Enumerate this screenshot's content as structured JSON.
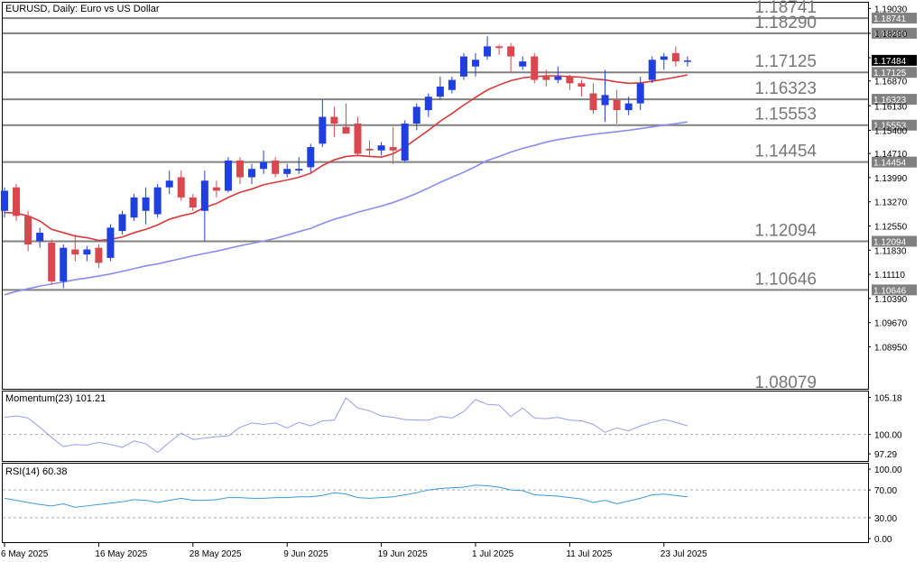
{
  "chart_title": "EURUSD, Daily:  Euro vs US Dollar",
  "momentum_label": "Momentum(23) 101.21",
  "rsi_label": "RSI(14) 60.38",
  "colors": {
    "bull": "#1f3fe0",
    "bear": "#d9474f",
    "ma_fast": "#d83a3a",
    "ma_slow": "#8a8df0",
    "level_line": "#808080",
    "momentum": "#9a9cf2",
    "rsi": "#3a9bd8",
    "current_price_tag": "#000000"
  },
  "price_axis_ticks": [
    "1.19030",
    "1.18290",
    "1.17560",
    "1.16870",
    "1.16130",
    "1.15400",
    "1.14710",
    "1.13990",
    "1.13270",
    "1.12550",
    "1.11830",
    "1.11110",
    "1.10390",
    "1.09670",
    "1.08950"
  ],
  "levels": [
    {
      "value": 1.18741,
      "big": "1.18741",
      "tag": "1.18741"
    },
    {
      "value": 1.1829,
      "big": "1.18290",
      "tag": "1.18290"
    },
    {
      "value": 1.17125,
      "big": "1.17125",
      "tag": "1.17125"
    },
    {
      "value": 1.16323,
      "big": "1.16323",
      "tag": "1.16323"
    },
    {
      "value": 1.15553,
      "big": "1.15553",
      "tag": "1.15553"
    },
    {
      "value": 1.14454,
      "big": "1.14454",
      "tag": "1.14454"
    },
    {
      "value": 1.12094,
      "big": "1.12094",
      "tag": "1.12094"
    },
    {
      "value": 1.10646,
      "big": "1.10646",
      "tag": "1.10646"
    }
  ],
  "bottom_level_text": "1.08079",
  "current_price": {
    "value": 1.17484,
    "label": "1.17484"
  },
  "momentum_axis_ticks": [
    {
      "v": 105.18,
      "t": "105.18"
    },
    {
      "v": 100.0,
      "t": "100.00"
    },
    {
      "v": 97.29,
      "t": "97.29"
    }
  ],
  "rsi_axis_ticks": [
    {
      "v": 100,
      "t": "100.00"
    },
    {
      "v": 70,
      "t": "70.00"
    },
    {
      "v": 30,
      "t": "30.00"
    },
    {
      "v": 0,
      "t": "0.00"
    }
  ],
  "date_labels": [
    {
      "index": 0,
      "text": "6 May 2025"
    },
    {
      "index": 8,
      "text": "16 May 2025"
    },
    {
      "index": 16,
      "text": "28 May 2025"
    },
    {
      "index": 24,
      "text": "9 Jun 2025"
    },
    {
      "index": 32,
      "text": "19 Jun 2025"
    },
    {
      "index": 40,
      "text": "1 Jul 2025"
    },
    {
      "index": 48,
      "text": "11 Jul 2025"
    },
    {
      "index": 56,
      "text": "23 Jul 2025"
    }
  ],
  "chart_data": {
    "type": "candlestick",
    "symbol": "EURUSD",
    "timeframe": "Daily",
    "ylim": [
      1.077,
      1.192
    ],
    "candles": [
      {
        "o": 1.13,
        "h": 1.137,
        "l": 1.128,
        "c": 1.136
      },
      {
        "o": 1.137,
        "h": 1.138,
        "l": 1.127,
        "c": 1.1285
      },
      {
        "o": 1.1285,
        "h": 1.13,
        "l": 1.118,
        "c": 1.12
      },
      {
        "o": 1.121,
        "h": 1.125,
        "l": 1.119,
        "c": 1.1235
      },
      {
        "o": 1.1205,
        "h": 1.1215,
        "l": 1.108,
        "c": 1.109
      },
      {
        "o": 1.109,
        "h": 1.12,
        "l": 1.107,
        "c": 1.119
      },
      {
        "o": 1.1185,
        "h": 1.123,
        "l": 1.115,
        "c": 1.117
      },
      {
        "o": 1.117,
        "h": 1.1195,
        "l": 1.115,
        "c": 1.1185
      },
      {
        "o": 1.119,
        "h": 1.12,
        "l": 1.113,
        "c": 1.1145
      },
      {
        "o": 1.116,
        "h": 1.126,
        "l": 1.115,
        "c": 1.125
      },
      {
        "o": 1.124,
        "h": 1.13,
        "l": 1.123,
        "c": 1.129
      },
      {
        "o": 1.128,
        "h": 1.135,
        "l": 1.127,
        "c": 1.134
      },
      {
        "o": 1.13,
        "h": 1.137,
        "l": 1.126,
        "c": 1.134
      },
      {
        "o": 1.129,
        "h": 1.138,
        "l": 1.128,
        "c": 1.137
      },
      {
        "o": 1.137,
        "h": 1.142,
        "l": 1.135,
        "c": 1.139
      },
      {
        "o": 1.14,
        "h": 1.142,
        "l": 1.133,
        "c": 1.134
      },
      {
        "o": 1.134,
        "h": 1.135,
        "l": 1.13,
        "c": 1.131
      },
      {
        "o": 1.13,
        "h": 1.142,
        "l": 1.121,
        "c": 1.139
      },
      {
        "o": 1.137,
        "h": 1.139,
        "l": 1.134,
        "c": 1.136
      },
      {
        "o": 1.136,
        "h": 1.146,
        "l": 1.1355,
        "c": 1.145
      },
      {
        "o": 1.145,
        "h": 1.146,
        "l": 1.138,
        "c": 1.14
      },
      {
        "o": 1.14,
        "h": 1.144,
        "l": 1.138,
        "c": 1.1425
      },
      {
        "o": 1.1425,
        "h": 1.148,
        "l": 1.141,
        "c": 1.1445
      },
      {
        "o": 1.145,
        "h": 1.146,
        "l": 1.14,
        "c": 1.141
      },
      {
        "o": 1.141,
        "h": 1.144,
        "l": 1.14,
        "c": 1.1425
      },
      {
        "o": 1.142,
        "h": 1.146,
        "l": 1.141,
        "c": 1.1425
      },
      {
        "o": 1.143,
        "h": 1.15,
        "l": 1.1415,
        "c": 1.149
      },
      {
        "o": 1.15,
        "h": 1.163,
        "l": 1.149,
        "c": 1.158
      },
      {
        "o": 1.158,
        "h": 1.161,
        "l": 1.152,
        "c": 1.156
      },
      {
        "o": 1.155,
        "h": 1.162,
        "l": 1.153,
        "c": 1.153
      },
      {
        "o": 1.156,
        "h": 1.158,
        "l": 1.1465,
        "c": 1.147
      },
      {
        "o": 1.1485,
        "h": 1.151,
        "l": 1.146,
        "c": 1.148
      },
      {
        "o": 1.148,
        "h": 1.1505,
        "l": 1.1465,
        "c": 1.1495
      },
      {
        "o": 1.149,
        "h": 1.155,
        "l": 1.144,
        "c": 1.148
      },
      {
        "o": 1.145,
        "h": 1.157,
        "l": 1.1445,
        "c": 1.156
      },
      {
        "o": 1.156,
        "h": 1.162,
        "l": 1.154,
        "c": 1.161
      },
      {
        "o": 1.16,
        "h": 1.165,
        "l": 1.158,
        "c": 1.164
      },
      {
        "o": 1.164,
        "h": 1.17,
        "l": 1.163,
        "c": 1.167
      },
      {
        "o": 1.166,
        "h": 1.17,
        "l": 1.165,
        "c": 1.169
      },
      {
        "o": 1.17,
        "h": 1.177,
        "l": 1.169,
        "c": 1.176
      },
      {
        "o": 1.173,
        "h": 1.177,
        "l": 1.17,
        "c": 1.175
      },
      {
        "o": 1.176,
        "h": 1.182,
        "l": 1.175,
        "c": 1.179
      },
      {
        "o": 1.179,
        "h": 1.1795,
        "l": 1.1765,
        "c": 1.1785
      },
      {
        "o": 1.179,
        "h": 1.18,
        "l": 1.171,
        "c": 1.176
      },
      {
        "o": 1.173,
        "h": 1.176,
        "l": 1.172,
        "c": 1.1745
      },
      {
        "o": 1.176,
        "h": 1.177,
        "l": 1.168,
        "c": 1.169
      },
      {
        "o": 1.17,
        "h": 1.172,
        "l": 1.167,
        "c": 1.169
      },
      {
        "o": 1.169,
        "h": 1.173,
        "l": 1.168,
        "c": 1.17
      },
      {
        "o": 1.17,
        "h": 1.1705,
        "l": 1.166,
        "c": 1.168
      },
      {
        "o": 1.168,
        "h": 1.169,
        "l": 1.164,
        "c": 1.167
      },
      {
        "o": 1.165,
        "h": 1.168,
        "l": 1.159,
        "c": 1.16
      },
      {
        "o": 1.1615,
        "h": 1.172,
        "l": 1.1565,
        "c": 1.1645
      },
      {
        "o": 1.163,
        "h": 1.166,
        "l": 1.156,
        "c": 1.16
      },
      {
        "o": 1.16,
        "h": 1.164,
        "l": 1.1585,
        "c": 1.162
      },
      {
        "o": 1.162,
        "h": 1.17,
        "l": 1.16,
        "c": 1.168
      },
      {
        "o": 1.169,
        "h": 1.176,
        "l": 1.168,
        "c": 1.175
      },
      {
        "o": 1.175,
        "h": 1.177,
        "l": 1.172,
        "c": 1.176
      },
      {
        "o": 1.177,
        "h": 1.179,
        "l": 1.173,
        "c": 1.1745
      },
      {
        "o": 1.1745,
        "h": 1.176,
        "l": 1.173,
        "c": 1.1748
      }
    ],
    "ma_fast": [
      1.1295,
      1.1293,
      1.1285,
      1.127,
      1.1245,
      1.1235,
      1.1225,
      1.122,
      1.1212,
      1.1215,
      1.1222,
      1.1235,
      1.1245,
      1.1258,
      1.1275,
      1.1285,
      1.1293,
      1.131,
      1.1322,
      1.134,
      1.1355,
      1.1365,
      1.1378,
      1.1385,
      1.1392,
      1.14,
      1.1412,
      1.1435,
      1.1452,
      1.1462,
      1.1465,
      1.1462,
      1.146,
      1.147,
      1.149,
      1.1515,
      1.154,
      1.1567,
      1.159,
      1.1615,
      1.1638,
      1.166,
      1.1675,
      1.1688,
      1.1696,
      1.17,
      1.1702,
      1.1702,
      1.17,
      1.1698,
      1.1693,
      1.169,
      1.1684,
      1.168,
      1.1681,
      1.1686,
      1.1692,
      1.1698,
      1.1705
    ],
    "ma_slow": [
      1.105,
      1.106,
      1.1068,
      1.1076,
      1.1082,
      1.1088,
      1.1095,
      1.11,
      1.1106,
      1.1112,
      1.112,
      1.1128,
      1.1136,
      1.1142,
      1.115,
      1.1158,
      1.1166,
      1.1173,
      1.118,
      1.1188,
      1.1196,
      1.1203,
      1.121,
      1.1218,
      1.1228,
      1.1238,
      1.1248,
      1.1262,
      1.1275,
      1.1285,
      1.1296,
      1.1305,
      1.1314,
      1.1325,
      1.1338,
      1.1352,
      1.1368,
      1.1385,
      1.14,
      1.1415,
      1.1432,
      1.145,
      1.1462,
      1.1475,
      1.1486,
      1.1495,
      1.1505,
      1.1512,
      1.1518,
      1.1523,
      1.1528,
      1.1532,
      1.1536,
      1.154,
      1.1545,
      1.155,
      1.1555,
      1.156,
      1.1565
    ],
    "momentum": [
      102.4,
      102.6,
      102.3,
      101.0,
      99.6,
      98.3,
      98.6,
      98.5,
      98.9,
      98.6,
      98.2,
      99.1,
      98.7,
      97.5,
      98.9,
      100.2,
      99.3,
      99.5,
      99.7,
      99.8,
      101.0,
      101.6,
      101.4,
      101.6,
      100.9,
      101.7,
      101.2,
      101.9,
      102.0,
      105.1,
      103.7,
      103.3,
      102.6,
      102.4,
      102.1,
      102.0,
      102.0,
      102.5,
      102.3,
      103.2,
      104.9,
      104.2,
      104.1,
      102.5,
      103.7,
      102.3,
      102.2,
      102.4,
      102.0,
      101.9,
      101.4,
      100.3,
      100.9,
      100.5,
      101.2,
      101.7,
      102.1,
      101.7,
      101.2
    ],
    "rsi": [
      58,
      55,
      52,
      49,
      47,
      50,
      45,
      47,
      49,
      51,
      53,
      56,
      55,
      52,
      55,
      58,
      55,
      55,
      56,
      59,
      59,
      58,
      58,
      59,
      59,
      60,
      60,
      62,
      66,
      64,
      59,
      58,
      59,
      60,
      63,
      66,
      70,
      72,
      73,
      74,
      77,
      76,
      74,
      70,
      69,
      63,
      62,
      61,
      59,
      57,
      52,
      55,
      50,
      54,
      58,
      63,
      64,
      62,
      60
    ],
    "momentum_ylim": [
      96.3,
      106.0
    ],
    "rsi_ylim": [
      0,
      100
    ]
  }
}
